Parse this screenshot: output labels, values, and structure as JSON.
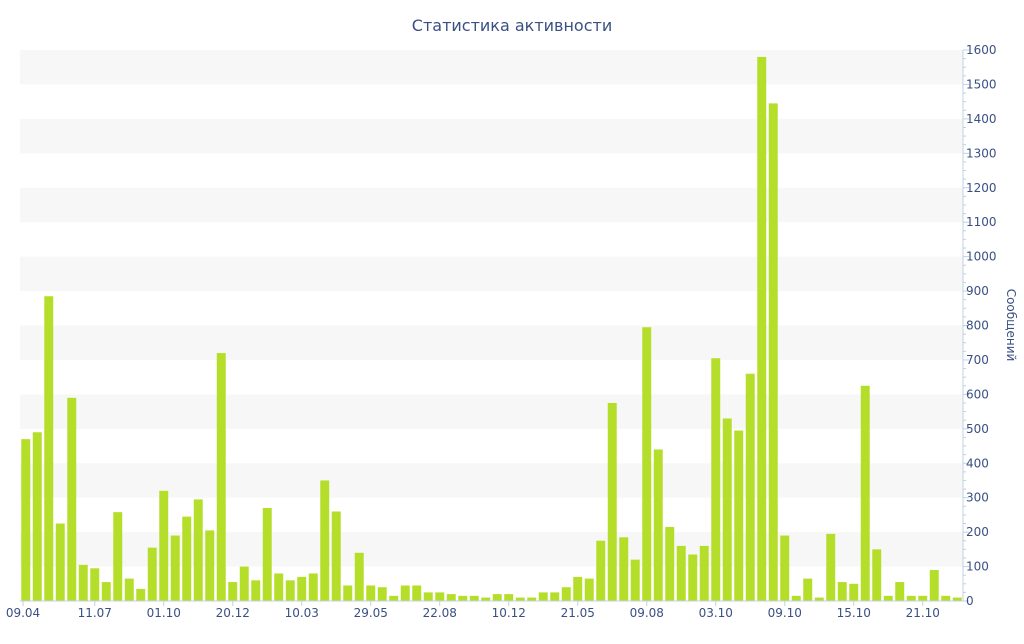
{
  "chart_data": {
    "type": "bar",
    "title": "Статистика активности",
    "xlabel": "",
    "ylabel": "Сообщений",
    "ylim": [
      0,
      1600
    ],
    "yticks": [
      0,
      100,
      200,
      300,
      400,
      500,
      600,
      700,
      800,
      900,
      1000,
      1100,
      1200,
      1300,
      1400,
      1500,
      1600
    ],
    "y_axis_side": "right",
    "grid": "alternating horizontal bands",
    "x_tick_labels": [
      {
        "index": 0,
        "label": "09.04"
      },
      {
        "index": 6,
        "label": "11.07"
      },
      {
        "index": 12,
        "label": "01.10"
      },
      {
        "index": 18,
        "label": "20.12"
      },
      {
        "index": 24,
        "label": "10.03"
      },
      {
        "index": 30,
        "label": "29.05"
      },
      {
        "index": 36,
        "label": "22.08"
      },
      {
        "index": 42,
        "label": "10.12"
      },
      {
        "index": 48,
        "label": "21.05"
      },
      {
        "index": 54,
        "label": "09.08"
      },
      {
        "index": 60,
        "label": "03.10"
      },
      {
        "index": 66,
        "label": "09.10"
      },
      {
        "index": 72,
        "label": "15.10"
      },
      {
        "index": 78,
        "label": "21.10"
      }
    ],
    "values": [
      470,
      490,
      885,
      225,
      590,
      105,
      95,
      55,
      258,
      65,
      35,
      155,
      320,
      190,
      245,
      295,
      205,
      720,
      55,
      100,
      60,
      270,
      80,
      60,
      70,
      80,
      350,
      260,
      45,
      140,
      45,
      40,
      15,
      45,
      45,
      25,
      25,
      20,
      15,
      15,
      10,
      20,
      20,
      10,
      10,
      25,
      25,
      40,
      70,
      65,
      175,
      575,
      185,
      120,
      795,
      440,
      215,
      160,
      135,
      160,
      705,
      530,
      495,
      660,
      1580,
      1445,
      190,
      15,
      65,
      10,
      195,
      55,
      50,
      625,
      150,
      15,
      55,
      15,
      15,
      90,
      15,
      10
    ],
    "bar_color": "#b5de2a",
    "band_color": "#f7f7f7"
  }
}
